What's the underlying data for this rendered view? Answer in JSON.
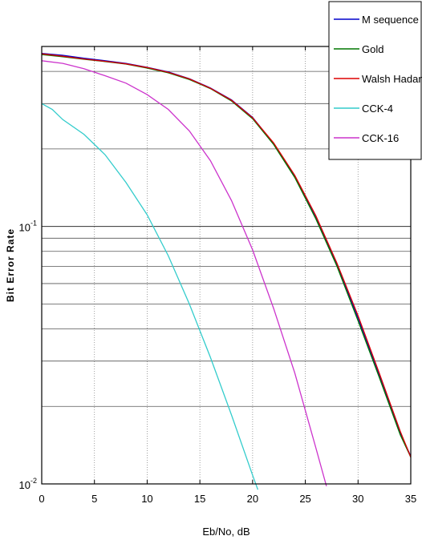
{
  "chart_data": {
    "type": "line",
    "xlabel": "Eb/No, dB",
    "ylabel": "Bit Error Rate",
    "xlim": [
      0,
      35
    ],
    "ylim": [
      0.01,
      0.5
    ],
    "y_scale": "log",
    "grid": true,
    "legend_position": "top-right",
    "x_ticks": [
      0,
      5,
      10,
      15,
      20,
      25,
      30,
      35
    ],
    "x_tick_labels": [
      "0",
      "5",
      "10",
      "15",
      "20",
      "25",
      "30",
      "35"
    ],
    "y_ticks": [
      {
        "value": 0.1,
        "base": "10",
        "exp": "-1"
      },
      {
        "value": 0.01,
        "base": "10",
        "exp": "-2"
      }
    ],
    "series": [
      {
        "name": "M sequence",
        "color": "#0000cc",
        "x": [
          0,
          2,
          4,
          6,
          8,
          10,
          12,
          14,
          16,
          18,
          20,
          22,
          24,
          26,
          28,
          30,
          32,
          34,
          35
        ],
        "y": [
          0.47,
          0.462,
          0.45,
          0.44,
          0.43,
          0.415,
          0.398,
          0.375,
          0.345,
          0.31,
          0.265,
          0.21,
          0.156,
          0.108,
          0.071,
          0.044,
          0.0265,
          0.0158,
          0.0128
        ]
      },
      {
        "name": "Gold",
        "color": "#007700",
        "x": [
          0,
          2,
          4,
          6,
          8,
          10,
          12,
          14,
          16,
          18,
          20,
          22,
          24,
          26,
          28,
          30,
          32,
          34,
          35
        ],
        "y": [
          0.465,
          0.456,
          0.446,
          0.437,
          0.427,
          0.412,
          0.395,
          0.372,
          0.343,
          0.307,
          0.262,
          0.208,
          0.155,
          0.107,
          0.07,
          0.043,
          0.026,
          0.0155,
          0.0127
        ]
      },
      {
        "name": "Walsh Hadamard",
        "color": "#dd0000",
        "x": [
          0,
          2,
          4,
          6,
          8,
          10,
          12,
          14,
          16,
          18,
          20,
          22,
          24,
          26,
          28,
          30,
          32,
          34,
          35
        ],
        "y": [
          0.468,
          0.458,
          0.447,
          0.438,
          0.428,
          0.414,
          0.397,
          0.374,
          0.344,
          0.309,
          0.264,
          0.211,
          0.158,
          0.11,
          0.072,
          0.045,
          0.027,
          0.016,
          0.0127
        ]
      },
      {
        "name": "CCK-4",
        "color": "#33cccc",
        "x": [
          0,
          1,
          2,
          4,
          6,
          8,
          10,
          12,
          14,
          16,
          18,
          20,
          20.5
        ],
        "y": [
          0.3,
          0.285,
          0.26,
          0.228,
          0.19,
          0.148,
          0.111,
          0.077,
          0.05,
          0.031,
          0.0185,
          0.0108,
          0.0095
        ]
      },
      {
        "name": "CCK-16",
        "color": "#cc33cc",
        "x": [
          0,
          2,
          4,
          6,
          8,
          10,
          12,
          14,
          16,
          18,
          20,
          22,
          24,
          26,
          27
        ],
        "y": [
          0.44,
          0.43,
          0.41,
          0.385,
          0.36,
          0.325,
          0.285,
          0.235,
          0.18,
          0.126,
          0.081,
          0.048,
          0.027,
          0.0138,
          0.0098
        ]
      }
    ]
  }
}
